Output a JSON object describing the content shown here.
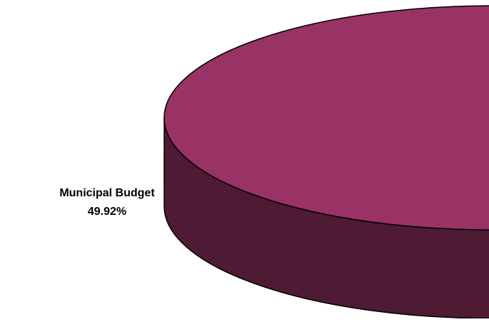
{
  "chart_data": {
    "type": "pie",
    "style": "3d",
    "slices": [
      {
        "label": "Municipal Budget",
        "value": 49.92,
        "value_label": "49.92%",
        "top_color": "#993366",
        "side_color": "#4F1A33"
      }
    ],
    "title": "",
    "legend": "none"
  },
  "colors": {
    "background": "#FFFFFF",
    "outline": "#000000"
  }
}
